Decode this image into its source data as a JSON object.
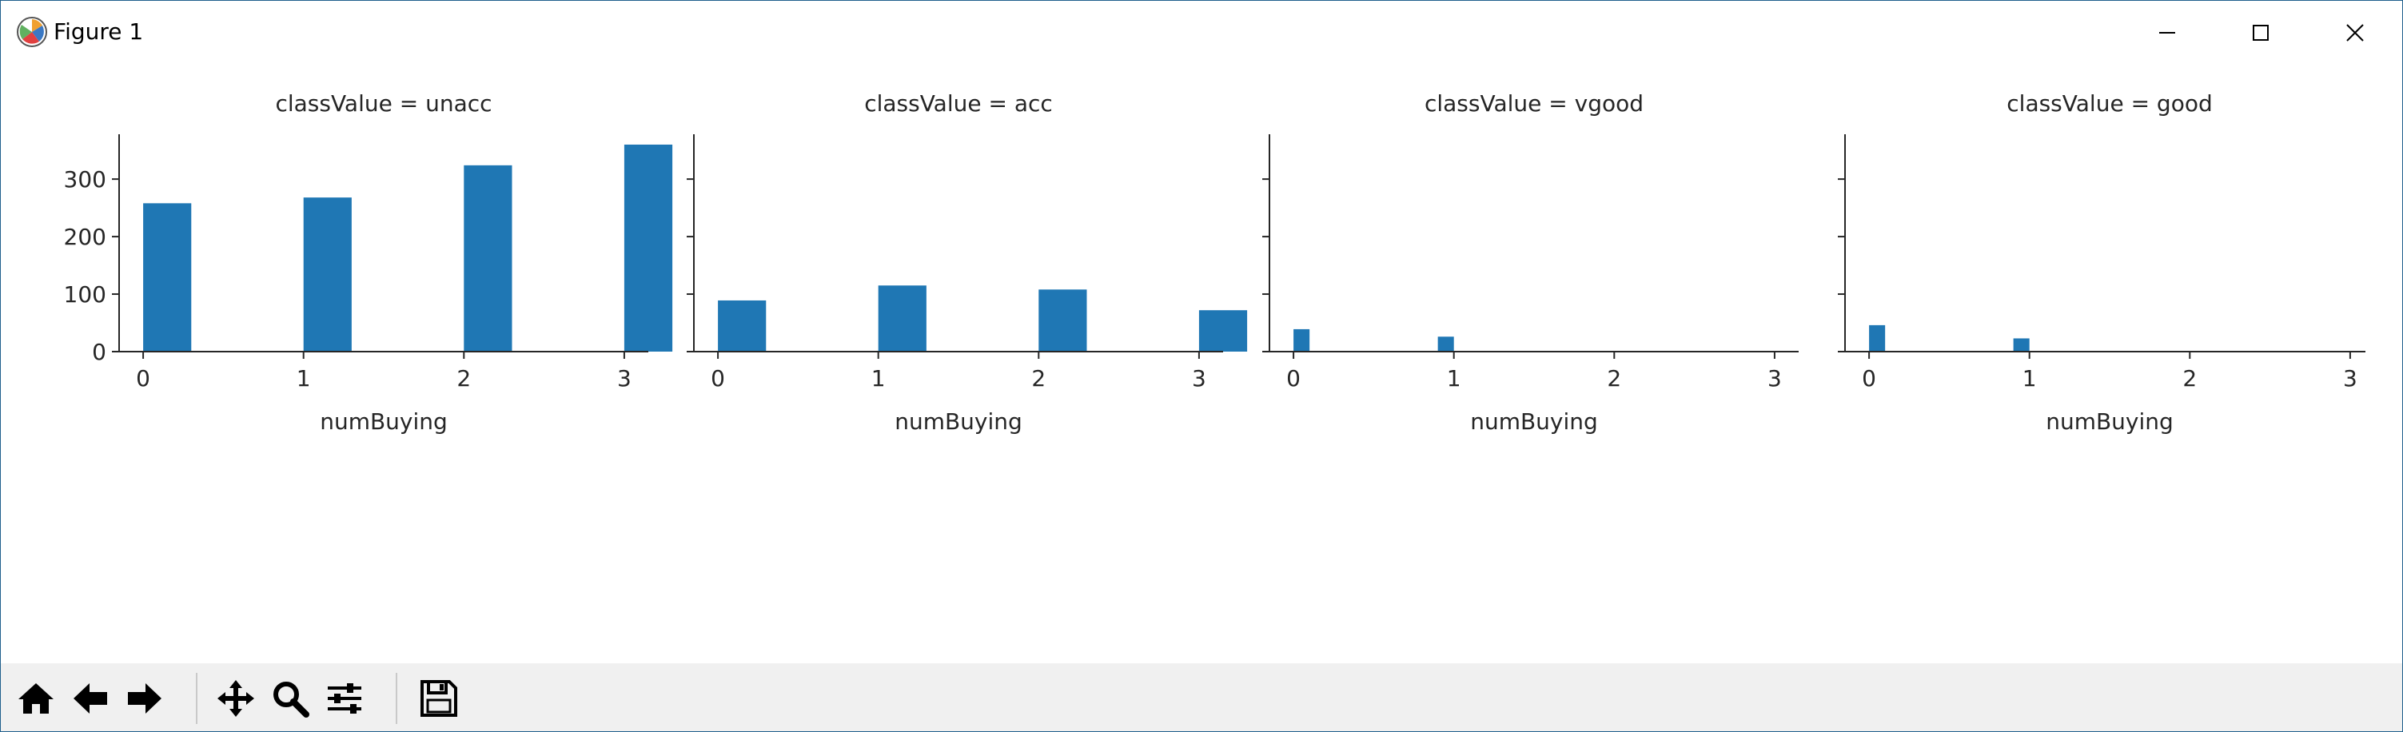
{
  "window": {
    "title": "Figure 1",
    "icon": "matplotlib-icon",
    "controls": [
      "minimize-icon",
      "maximize-icon",
      "close-icon"
    ]
  },
  "toolbar": {
    "buttons": [
      {
        "name": "home-button",
        "icon": "home-icon"
      },
      {
        "name": "back-button",
        "icon": "back-arrow-icon"
      },
      {
        "name": "forward-button",
        "icon": "forward-arrow-icon"
      },
      {
        "name": "pan-button",
        "icon": "move-icon"
      },
      {
        "name": "zoom-button",
        "icon": "zoom-icon"
      },
      {
        "name": "configure-subplots-button",
        "icon": "sliders-icon"
      },
      {
        "name": "save-button",
        "icon": "save-icon"
      }
    ]
  },
  "chart_data": {
    "type": "bar",
    "sharey": true,
    "bar_color": "#1f77b4",
    "axis_color": "#262626",
    "ylim": [
      0,
      378
    ],
    "yticks": [
      0,
      100,
      200,
      300
    ],
    "xlim": [
      -0.15,
      3.15
    ],
    "xticks": [
      0,
      1,
      2,
      3
    ],
    "xlabel": "numBuying",
    "panels": [
      {
        "title": "classValue = unacc",
        "bin_width": 0.3,
        "bars": [
          {
            "x": 0,
            "value": 258
          },
          {
            "x": 1,
            "value": 268
          },
          {
            "x": 2,
            "value": 324
          },
          {
            "x": 3,
            "value": 360
          }
        ]
      },
      {
        "title": "classValue = acc",
        "bin_width": 0.3,
        "bars": [
          {
            "x": 0,
            "value": 89
          },
          {
            "x": 1,
            "value": 115
          },
          {
            "x": 2,
            "value": 108
          },
          {
            "x": 3,
            "value": 72
          }
        ]
      },
      {
        "title": "classValue = vgood",
        "bin_width": 0.1,
        "bars": [
          {
            "x": 0,
            "value": 39
          },
          {
            "x": 0.9,
            "value": 26
          }
        ]
      },
      {
        "title": "classValue = good",
        "bin_width": 0.1,
        "bars": [
          {
            "x": 0,
            "value": 46
          },
          {
            "x": 0.9,
            "value": 23
          }
        ]
      }
    ]
  }
}
